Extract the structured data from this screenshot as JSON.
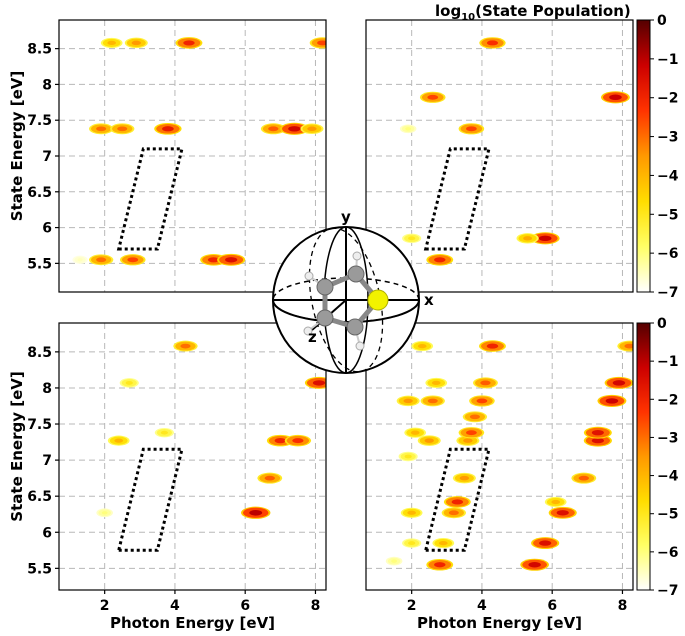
{
  "colorbar": {
    "title_main": "log",
    "title_sub": "10",
    "title_rest": "(State Population)",
    "ticks": [
      "0",
      "−1",
      "−2",
      "−3",
      "−4",
      "−5",
      "−6",
      "−7"
    ],
    "vmin": -7,
    "vmax": 0,
    "colors": [
      "#ffffff",
      "#ffff66",
      "#ffdd00",
      "#ff9900",
      "#ff3300",
      "#cc0000",
      "#550000"
    ]
  },
  "molecule": {
    "axis_x": "x",
    "axis_y": "y",
    "axis_z": "z"
  },
  "chart_data": [
    {
      "type": "heatmap",
      "position": "top-left",
      "xlabel": "",
      "ylabel": "State Energy [eV]",
      "xlim": [
        0.7,
        8.3
      ],
      "ylim": [
        5.1,
        8.9
      ],
      "xticks": [],
      "yticks": [
        "5.5",
        "6",
        "6.5",
        "7",
        "7.5",
        "8",
        "8.5"
      ],
      "spots": [
        {
          "x": 1.3,
          "y": 5.55,
          "v": -6.5
        },
        {
          "x": 1.9,
          "y": 5.55,
          "v": -3
        },
        {
          "x": 2.8,
          "y": 5.55,
          "v": -2.5
        },
        {
          "x": 5.1,
          "y": 5.55,
          "v": -2
        },
        {
          "x": 5.6,
          "y": 5.55,
          "v": -1.5
        },
        {
          "x": 1.9,
          "y": 7.38,
          "v": -3
        },
        {
          "x": 2.5,
          "y": 7.38,
          "v": -3
        },
        {
          "x": 3.8,
          "y": 7.38,
          "v": -1.8
        },
        {
          "x": 6.8,
          "y": 7.38,
          "v": -2.8
        },
        {
          "x": 7.4,
          "y": 7.38,
          "v": -1.3
        },
        {
          "x": 7.9,
          "y": 7.38,
          "v": -3.5
        },
        {
          "x": 2.2,
          "y": 8.58,
          "v": -4
        },
        {
          "x": 2.9,
          "y": 8.58,
          "v": -3.5
        },
        {
          "x": 4.4,
          "y": 8.58,
          "v": -2
        },
        {
          "x": 8.2,
          "y": 8.58,
          "v": -2.5
        }
      ],
      "window": [
        [
          2.4,
          5.7
        ],
        [
          3.5,
          5.7
        ],
        [
          4.2,
          7.1
        ],
        [
          3.1,
          7.1
        ]
      ]
    },
    {
      "type": "heatmap",
      "position": "top-right",
      "xlabel": "",
      "ylabel": "",
      "xlim": [
        0.7,
        8.3
      ],
      "ylim": [
        5.1,
        8.9
      ],
      "xticks": [],
      "yticks": [],
      "spots": [
        {
          "x": 2.0,
          "y": 5.85,
          "v": -5
        },
        {
          "x": 2.8,
          "y": 5.55,
          "v": -2
        },
        {
          "x": 5.8,
          "y": 5.85,
          "v": -1.2
        },
        {
          "x": 5.3,
          "y": 5.85,
          "v": -3.8
        },
        {
          "x": 2.6,
          "y": 7.82,
          "v": -2.5
        },
        {
          "x": 7.8,
          "y": 7.82,
          "v": -1.2
        },
        {
          "x": 3.7,
          "y": 7.38,
          "v": -2.5
        },
        {
          "x": 1.9,
          "y": 7.38,
          "v": -6
        },
        {
          "x": 4.3,
          "y": 8.58,
          "v": -2.2
        }
      ],
      "window": [
        [
          2.4,
          5.7
        ],
        [
          3.5,
          5.7
        ],
        [
          4.2,
          7.1
        ],
        [
          3.1,
          7.1
        ]
      ]
    },
    {
      "type": "heatmap",
      "position": "bottom-left",
      "xlabel": "Photon Energy [eV]",
      "ylabel": "State Energy [eV]",
      "xlim": [
        0.7,
        8.3
      ],
      "ylim": [
        5.2,
        8.9
      ],
      "xticks": [
        "2",
        "4",
        "6",
        "8"
      ],
      "yticks": [
        "5.5",
        "6",
        "6.5",
        "7",
        "7.5",
        "8",
        "8.5"
      ],
      "spots": [
        {
          "x": 2.0,
          "y": 6.27,
          "v": -6
        },
        {
          "x": 6.3,
          "y": 6.27,
          "v": -1.0
        },
        {
          "x": 6.7,
          "y": 6.75,
          "v": -2.8
        },
        {
          "x": 7.0,
          "y": 7.27,
          "v": -2.0
        },
        {
          "x": 7.5,
          "y": 7.27,
          "v": -2.2
        },
        {
          "x": 2.4,
          "y": 7.27,
          "v": -4
        },
        {
          "x": 3.7,
          "y": 7.38,
          "v": -5
        },
        {
          "x": 2.7,
          "y": 8.07,
          "v": -5
        },
        {
          "x": 8.1,
          "y": 8.07,
          "v": -1.5
        },
        {
          "x": 4.3,
          "y": 8.58,
          "v": -3
        }
      ],
      "window": [
        [
          2.4,
          5.75
        ],
        [
          3.5,
          5.75
        ],
        [
          4.2,
          7.15
        ],
        [
          3.1,
          7.15
        ]
      ]
    },
    {
      "type": "heatmap",
      "position": "bottom-right",
      "xlabel": "Photon Energy [eV]",
      "ylabel": "",
      "xlim": [
        0.7,
        8.3
      ],
      "ylim": [
        5.2,
        8.9
      ],
      "xticks": [
        "2",
        "4",
        "6",
        "8"
      ],
      "yticks": [],
      "spots": [
        {
          "x": 1.5,
          "y": 5.6,
          "v": -6
        },
        {
          "x": 2.8,
          "y": 5.55,
          "v": -2
        },
        {
          "x": 5.5,
          "y": 5.55,
          "v": -1.3
        },
        {
          "x": 2.0,
          "y": 5.85,
          "v": -5
        },
        {
          "x": 2.9,
          "y": 5.85,
          "v": -4
        },
        {
          "x": 5.8,
          "y": 5.85,
          "v": -1.5
        },
        {
          "x": 2.0,
          "y": 6.27,
          "v": -4
        },
        {
          "x": 3.2,
          "y": 6.27,
          "v": -3
        },
        {
          "x": 6.3,
          "y": 6.27,
          "v": -1.5
        },
        {
          "x": 3.3,
          "y": 6.42,
          "v": -2
        },
        {
          "x": 6.1,
          "y": 6.42,
          "v": -4
        },
        {
          "x": 6.9,
          "y": 6.75,
          "v": -2.8
        },
        {
          "x": 3.5,
          "y": 6.75,
          "v": -3.5
        },
        {
          "x": 1.9,
          "y": 7.05,
          "v": -5
        },
        {
          "x": 2.5,
          "y": 7.27,
          "v": -3.5
        },
        {
          "x": 3.6,
          "y": 7.27,
          "v": -3.5
        },
        {
          "x": 7.3,
          "y": 7.27,
          "v": -1.5
        },
        {
          "x": 2.1,
          "y": 7.38,
          "v": -4
        },
        {
          "x": 3.7,
          "y": 7.38,
          "v": -2.5
        },
        {
          "x": 7.3,
          "y": 7.38,
          "v": -1.6
        },
        {
          "x": 3.8,
          "y": 7.6,
          "v": -3
        },
        {
          "x": 1.9,
          "y": 7.82,
          "v": -3.5
        },
        {
          "x": 2.6,
          "y": 7.82,
          "v": -3
        },
        {
          "x": 4.0,
          "y": 7.82,
          "v": -2.5
        },
        {
          "x": 7.7,
          "y": 7.82,
          "v": -1.2
        },
        {
          "x": 2.7,
          "y": 8.07,
          "v": -4
        },
        {
          "x": 4.1,
          "y": 8.07,
          "v": -2.8
        },
        {
          "x": 7.9,
          "y": 8.07,
          "v": -1.3
        },
        {
          "x": 2.3,
          "y": 8.58,
          "v": -4
        },
        {
          "x": 4.3,
          "y": 8.58,
          "v": -2
        },
        {
          "x": 8.2,
          "y": 8.58,
          "v": -3
        }
      ],
      "window": [
        [
          2.4,
          5.75
        ],
        [
          3.5,
          5.75
        ],
        [
          4.2,
          7.15
        ],
        [
          3.1,
          7.15
        ]
      ]
    }
  ]
}
